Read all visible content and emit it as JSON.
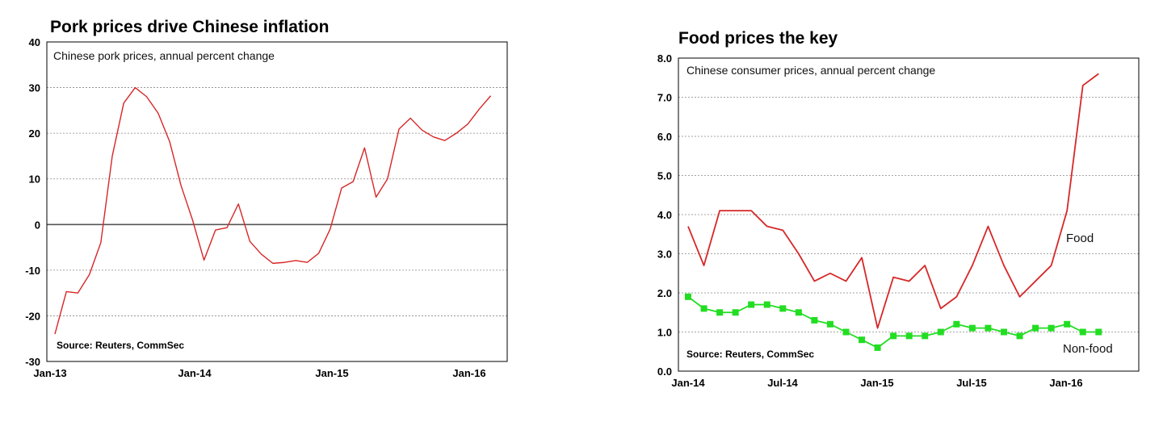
{
  "chart_data": [
    {
      "type": "line",
      "title": "Pork prices drive Chinese inflation",
      "subtitle": "Chinese pork prices, annual percent change",
      "source": "Source: Reuters, CommSec",
      "ylim": [
        -30,
        40
      ],
      "yticks": [
        -30,
        -20,
        -10,
        0,
        10,
        20,
        30,
        40
      ],
      "ytick_labels": [
        "-30",
        "-20",
        "-10",
        "0",
        "10",
        "20",
        "30",
        "40"
      ],
      "x_tick_labels": [
        "Jan-13",
        "Jan-14",
        "Jan-15",
        "Jan-16"
      ],
      "x": [
        "2013-01",
        "2013-02",
        "2013-03",
        "2013-04",
        "2013-05",
        "2013-06",
        "2013-07",
        "2013-08",
        "2013-09",
        "2013-10",
        "2013-11",
        "2013-12",
        "2014-01",
        "2014-02",
        "2014-03",
        "2014-04",
        "2014-05",
        "2014-06",
        "2014-07",
        "2014-08",
        "2014-09",
        "2014-10",
        "2014-11",
        "2014-12",
        "2015-01",
        "2015-02",
        "2015-03",
        "2015-04",
        "2015-05",
        "2015-06",
        "2015-07",
        "2015-08",
        "2015-09",
        "2015-10",
        "2015-11",
        "2015-12",
        "2016-01",
        "2016-02",
        "2016-03",
        "2016-04"
      ],
      "series": [
        {
          "color": "#d62728",
          "values": [
            -24.0,
            -14.7,
            -15.0,
            -11.0,
            -4.0,
            15.0,
            26.6,
            30.0,
            28.0,
            24.4,
            18.2,
            8.5,
            1.0,
            -7.8,
            -1.2,
            -0.7,
            4.5,
            -3.7,
            -6.5,
            -8.5,
            -8.3,
            -7.9,
            -8.3,
            -6.3,
            -1.0,
            8.0,
            9.4,
            16.8,
            6.0,
            10.0,
            20.9,
            23.3,
            20.7,
            19.2,
            18.4,
            20.0,
            22.0,
            25.3,
            28.2,
            null
          ]
        }
      ],
      "grid": true,
      "zero_line": true
    },
    {
      "type": "line",
      "title": "Food prices the key",
      "subtitle": "Chinese consumer prices, annual percent change",
      "source": "Source: Reuters, CommSec",
      "ylim": [
        0.0,
        8.0
      ],
      "yticks": [
        0,
        1,
        2,
        3,
        4,
        5,
        6,
        7,
        8
      ],
      "ytick_labels": [
        "0.0",
        "1.0",
        "2.0",
        "3.0",
        "4.0",
        "5.0",
        "6.0",
        "7.0",
        "8.0"
      ],
      "x_tick_labels": [
        "Jan-14",
        "Jul-14",
        "Jan-15",
        "Jul-15",
        "Jan-16"
      ],
      "x": [
        "2014-01",
        "2014-02",
        "2014-03",
        "2014-04",
        "2014-05",
        "2014-06",
        "2014-07",
        "2014-08",
        "2014-09",
        "2014-10",
        "2014-11",
        "2014-12",
        "2015-01",
        "2015-02",
        "2015-03",
        "2015-04",
        "2015-05",
        "2015-06",
        "2015-07",
        "2015-08",
        "2015-09",
        "2015-10",
        "2015-11",
        "2015-12",
        "2016-01",
        "2016-02",
        "2016-03",
        "2016-04"
      ],
      "series": [
        {
          "name": "Food",
          "color": "#d62728",
          "marker": "none",
          "values": [
            3.7,
            2.7,
            4.1,
            4.1,
            4.1,
            3.7,
            3.6,
            3.0,
            2.3,
            2.5,
            2.3,
            2.9,
            1.1,
            2.4,
            2.3,
            2.7,
            1.6,
            1.9,
            2.7,
            3.7,
            2.7,
            1.9,
            2.3,
            2.7,
            4.1,
            7.3,
            7.6,
            null
          ]
        },
        {
          "name": "Non-food",
          "color": "#22dd22",
          "marker": "square",
          "values": [
            1.9,
            1.6,
            1.5,
            1.5,
            1.7,
            1.7,
            1.6,
            1.5,
            1.3,
            1.2,
            1.0,
            0.8,
            0.6,
            0.9,
            0.9,
            0.9,
            1.0,
            1.2,
            1.1,
            1.1,
            1.0,
            0.9,
            1.1,
            1.1,
            1.2,
            1.0,
            1.0,
            null
          ]
        }
      ],
      "grid": true
    }
  ]
}
